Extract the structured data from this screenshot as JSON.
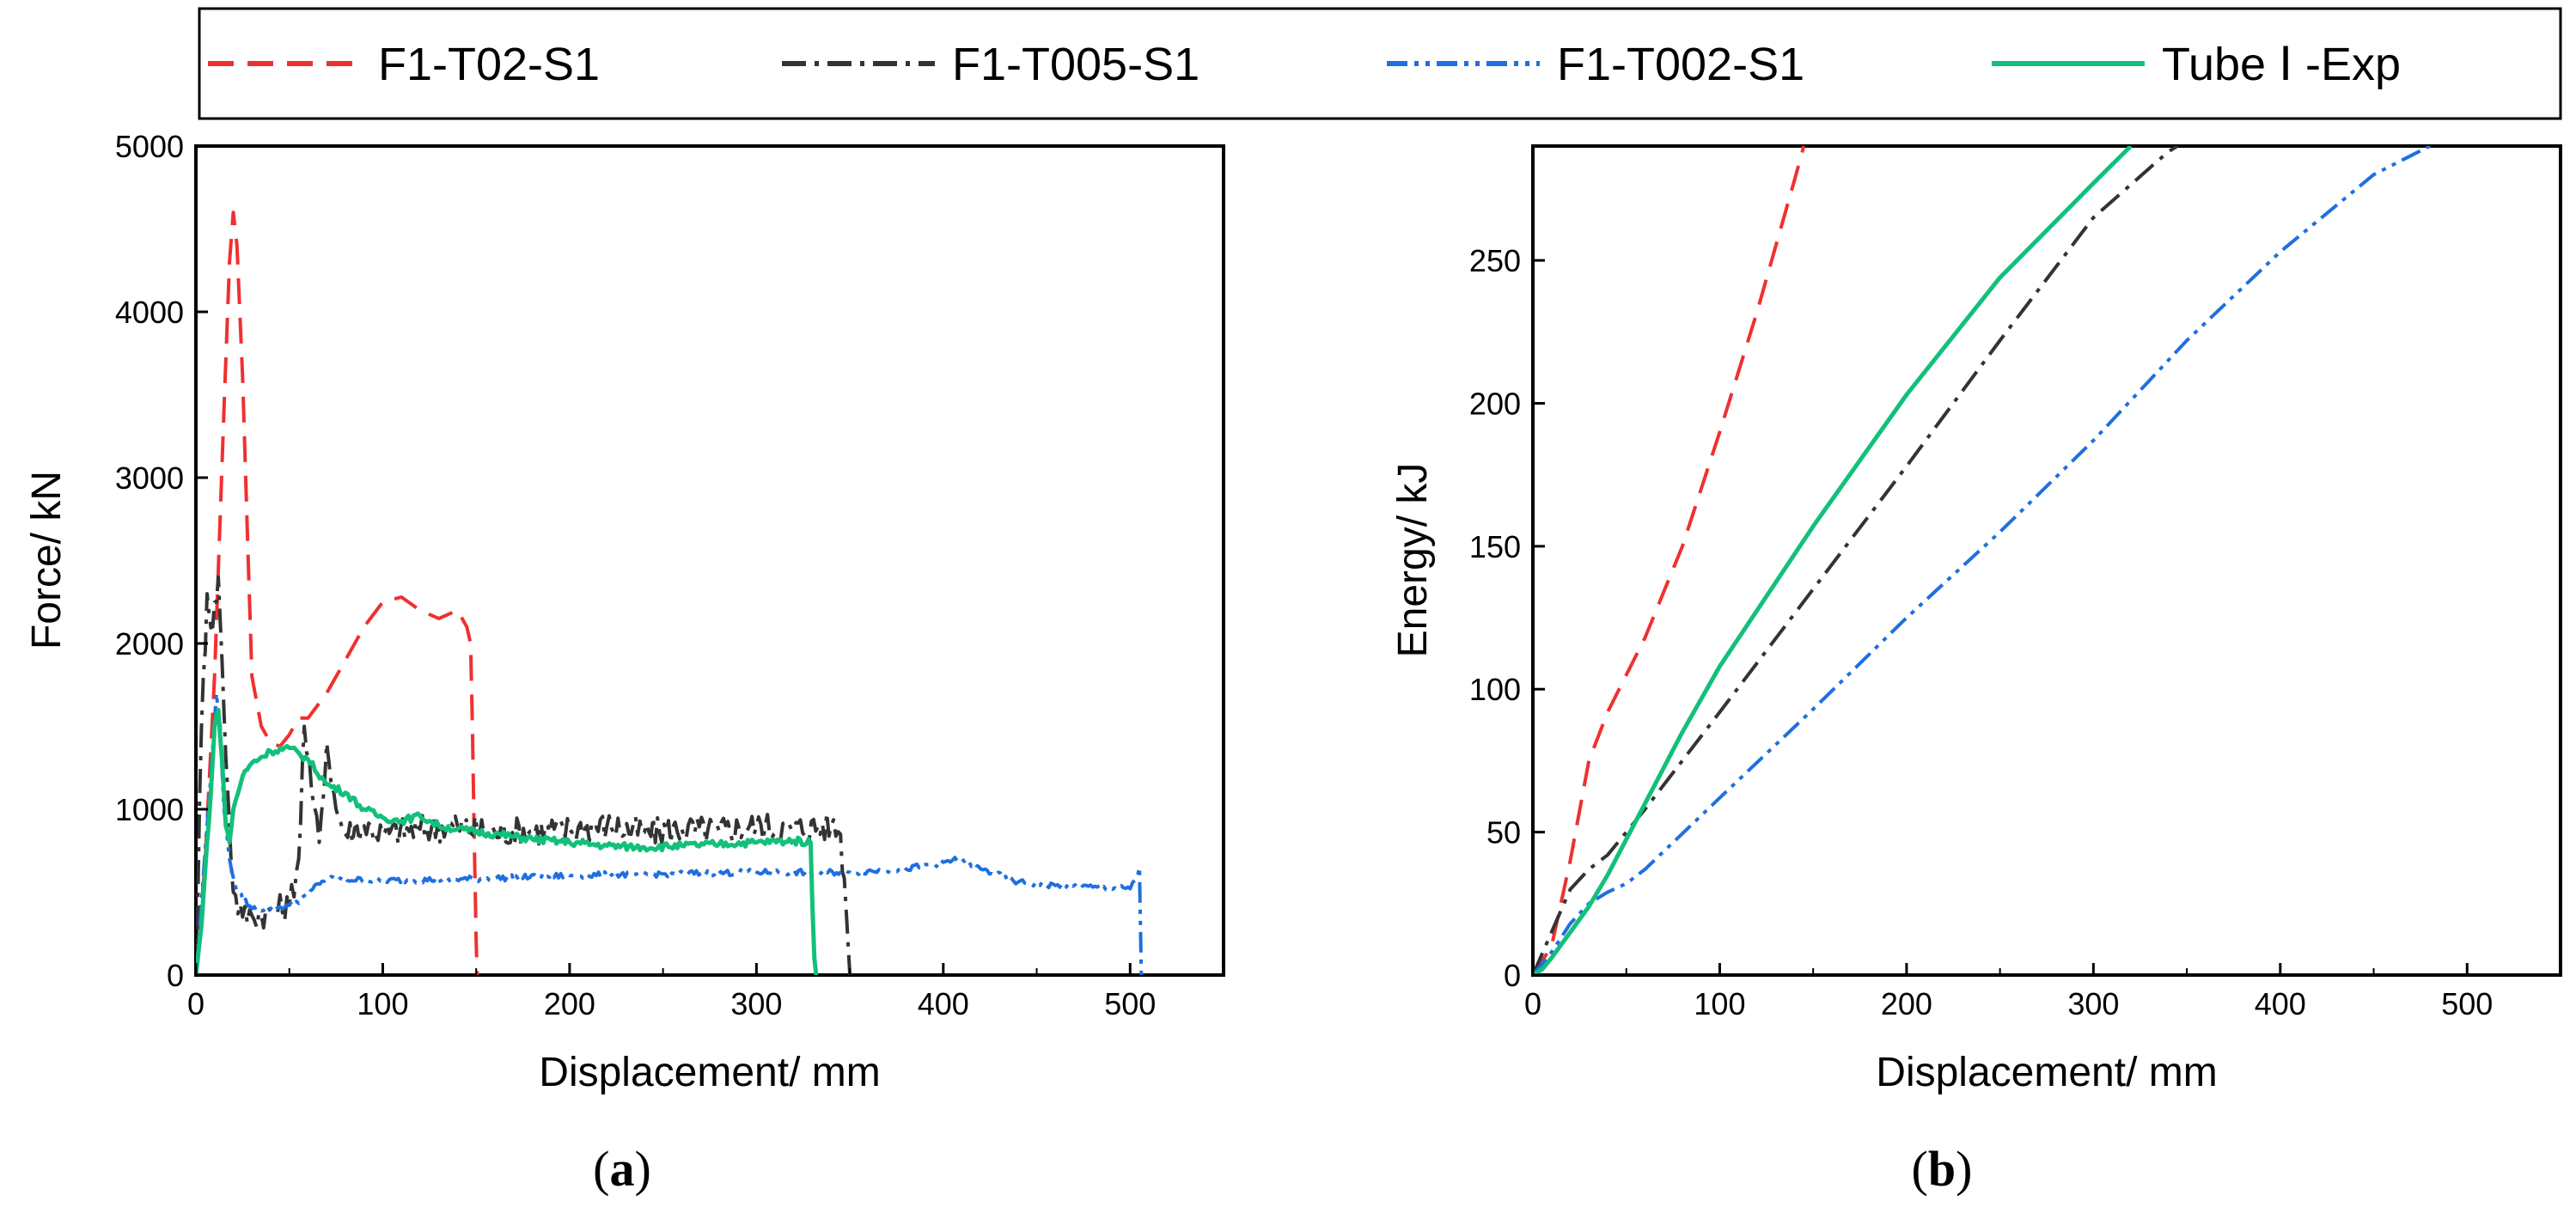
{
  "legend": {
    "items": [
      {
        "label": "F1-T02-S1",
        "color": "#f03030",
        "dash": "dash"
      },
      {
        "label": "F1-T005-S1",
        "color": "#333333",
        "dash": "dashdot"
      },
      {
        "label": "F1-T002-S1",
        "color": "#1f6fe0",
        "dash": "dashdotdot"
      },
      {
        "label": "Tube Ⅰ -Exp",
        "color": "#12c07a",
        "dash": "solid"
      }
    ]
  },
  "panels": {
    "a": {
      "label_open": "(",
      "label_letter": "a",
      "label_close": ")"
    },
    "b": {
      "label_open": "(",
      "label_letter": "b",
      "label_close": ")"
    }
  },
  "chart_data": [
    {
      "type": "line",
      "id": "a",
      "xlabel": "Displacement/ mm",
      "ylabel": "Force/ kN",
      "xlim": [
        0,
        550
      ],
      "ylim": [
        0,
        5000
      ],
      "xticks": [
        0,
        100,
        200,
        300,
        400,
        500
      ],
      "yticks": [
        0,
        1000,
        2000,
        3000,
        4000,
        5000
      ],
      "series": [
        {
          "name": "F1-T02-S1",
          "color": "#f03030",
          "dash": "dash",
          "x": [
            0,
            5,
            10,
            15,
            18,
            20,
            22,
            25,
            28,
            30,
            35,
            40,
            45,
            50,
            55,
            60,
            70,
            80,
            90,
            100,
            110,
            120,
            130,
            140,
            145,
            147,
            148,
            149,
            150,
            150.5
          ],
          "y": [
            0,
            700,
            1800,
            3400,
            4300,
            4600,
            4400,
            3600,
            2500,
            1800,
            1500,
            1400,
            1380,
            1450,
            1550,
            1550,
            1700,
            1900,
            2100,
            2250,
            2280,
            2200,
            2150,
            2200,
            2100,
            2000,
            1500,
            800,
            200,
            0
          ]
        },
        {
          "name": "F1-T005-S1",
          "color": "#333333",
          "dash": "dashdot",
          "x": [
            0,
            3,
            6,
            9,
            12,
            15,
            18,
            20,
            25,
            30,
            40,
            50,
            55,
            58,
            62,
            66,
            70,
            75,
            80,
            90,
            100,
            120,
            140,
            160,
            180,
            200,
            220,
            240,
            260,
            280,
            300,
            320,
            340,
            345,
            348,
            350
          ],
          "y": [
            0,
            1500,
            2300,
            2100,
            2400,
            1600,
            900,
            500,
            350,
            360,
            380,
            420,
            700,
            1500,
            1100,
            800,
            1400,
            1000,
            850,
            900,
            850,
            880,
            900,
            860,
            870,
            880,
            900,
            860,
            880,
            870,
            900,
            880,
            900,
            850,
            400,
            0
          ],
          "noise": 90
        },
        {
          "name": "F1-T002-S1",
          "color": "#1f6fe0",
          "dash": "dashdotdot",
          "x": [
            0,
            4,
            8,
            11,
            13,
            15,
            18,
            22,
            30,
            40,
            50,
            60,
            65,
            70,
            100,
            150,
            200,
            250,
            300,
            350,
            380,
            400,
            410,
            420,
            440,
            460,
            480,
            500,
            504,
            505,
            506
          ],
          "y": [
            0,
            600,
            1200,
            1700,
            1500,
            1000,
            700,
            500,
            400,
            400,
            420,
            480,
            550,
            580,
            570,
            580,
            600,
            610,
            620,
            620,
            640,
            680,
            700,
            640,
            560,
            540,
            530,
            520,
            600,
            650,
            0
          ],
          "noise": 18
        },
        {
          "name": "Tube Ⅰ -Exp",
          "color": "#12c07a",
          "dash": "solid",
          "x": [
            0,
            3,
            6,
            8,
            10,
            12,
            14,
            16,
            18,
            20,
            25,
            30,
            40,
            50,
            60,
            70,
            80,
            90,
            100,
            110,
            120,
            130,
            140,
            160,
            180,
            200,
            220,
            240,
            260,
            280,
            300,
            320,
            329,
            330,
            331,
            332
          ],
          "y": [
            0,
            300,
            800,
            1100,
            1500,
            1600,
            1300,
            900,
            800,
            1000,
            1200,
            1280,
            1350,
            1370,
            1300,
            1150,
            1100,
            1000,
            950,
            930,
            960,
            900,
            880,
            850,
            820,
            800,
            780,
            770,
            780,
            790,
            800,
            810,
            800,
            400,
            100,
            0
          ],
          "noise": 22
        }
      ]
    },
    {
      "type": "line",
      "id": "b",
      "xlabel": "Displacement/ mm",
      "ylabel": "Energy/ kJ",
      "xlim": [
        0,
        550
      ],
      "ylim": [
        0,
        290
      ],
      "xticks": [
        0,
        100,
        200,
        300,
        400,
        500
      ],
      "yticks": [
        0,
        50,
        100,
        150,
        200,
        250
      ],
      "series": [
        {
          "name": "F1-T02-S1",
          "color": "#f03030",
          "dash": "dash",
          "x": [
            0,
            10,
            20,
            30,
            40,
            60,
            80,
            100,
            120,
            140,
            145
          ],
          "y": [
            0,
            10,
            40,
            75,
            92,
            118,
            150,
            190,
            232,
            278,
            290
          ]
        },
        {
          "name": "F1-T005-S1",
          "color": "#333333",
          "dash": "dashdot",
          "x": [
            0,
            10,
            20,
            30,
            40,
            60,
            80,
            100,
            150,
            200,
            250,
            300,
            340,
            345
          ],
          "y": [
            0,
            15,
            30,
            37,
            42,
            58,
            75,
            92,
            135,
            178,
            222,
            265,
            288,
            290
          ]
        },
        {
          "name": "F1-T002-S1",
          "color": "#1f6fe0",
          "dash": "dashdotdot",
          "x": [
            0,
            10,
            20,
            30,
            40,
            50,
            60,
            100,
            150,
            200,
            250,
            300,
            350,
            400,
            450,
            480
          ],
          "y": [
            0,
            8,
            18,
            25,
            29,
            32,
            37,
            62,
            93,
            125,
            155,
            187,
            222,
            253,
            280,
            290
          ]
        },
        {
          "name": "Tube Ⅰ -Exp",
          "color": "#12c07a",
          "dash": "solid",
          "x": [
            0,
            5,
            10,
            20,
            30,
            40,
            60,
            80,
            100,
            150,
            200,
            250,
            300,
            320
          ],
          "y": [
            0,
            2,
            6,
            15,
            24,
            35,
            60,
            85,
            108,
            157,
            203,
            244,
            277,
            290
          ]
        }
      ]
    }
  ]
}
